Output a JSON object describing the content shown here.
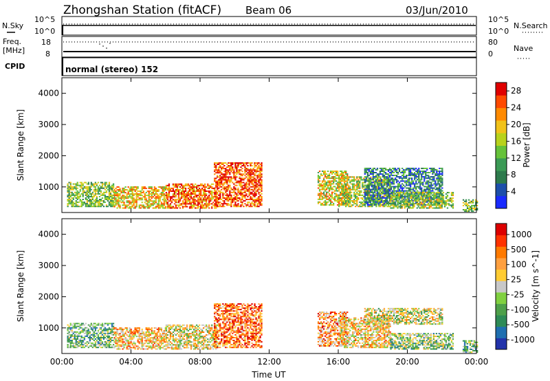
{
  "header": {
    "title": "Zhongshan Station (fitACF)",
    "beam": "Beam 06",
    "date": "03/Jun/2010"
  },
  "sky_panel": {
    "left_label": "N.Sky",
    "right_label": "N.Search",
    "left_ticks": [
      "10^5",
      "10^0"
    ],
    "right_ticks": [
      "10^5",
      "10^0"
    ]
  },
  "freq_panel": {
    "left_label_line1": "Freq.",
    "left_label_line2": "[MHz]",
    "right_label": "Nave",
    "left_ticks": [
      "18",
      "8"
    ],
    "right_ticks": [
      "80",
      "0"
    ]
  },
  "cpid": {
    "label": "CPID",
    "text": "normal (stereo) 152"
  },
  "colors": {
    "power": [
      "#1a2bff",
      "#1d4faa",
      "#2d7a4c",
      "#3b9a55",
      "#66c23a",
      "#b8d21c",
      "#f1c21a",
      "#ff8a00",
      "#ff4a00",
      "#e00000"
    ],
    "velocity": [
      "#2233aa",
      "#1f6fb0",
      "#2e8b57",
      "#4ea04a",
      "#80d040",
      "#c8c8c8",
      "#ffcc33",
      "#ffa040",
      "#ff7a00",
      "#ff3300",
      "#dd0000"
    ]
  },
  "chart_data": [
    {
      "type": "heatmap",
      "name": "power",
      "xlabel": "Time UT",
      "ylabel": "Slant Range [km]",
      "x_ticks": [
        "00:00",
        "04:00",
        "08:00",
        "12:00",
        "16:00",
        "20:00",
        "00:00"
      ],
      "xlim": [
        0,
        24
      ],
      "ylim": [
        180,
        4500
      ],
      "y_ticks": [
        1000,
        2000,
        3000,
        4000
      ],
      "colorbar_label": "Power [dB]",
      "colorbar_ticks": [
        4,
        8,
        12,
        16,
        20,
        24,
        28
      ],
      "colorbar_range": [
        0,
        30
      ],
      "regions": [
        {
          "t0": 0.3,
          "t1": 3.0,
          "r0": 350,
          "r1": 1150,
          "level": 0.45
        },
        {
          "t0": 3.0,
          "t1": 6.0,
          "r0": 300,
          "r1": 1000,
          "level": 0.65
        },
        {
          "t0": 6.0,
          "t1": 9.0,
          "r0": 300,
          "r1": 1100,
          "level": 0.8
        },
        {
          "t0": 8.8,
          "t1": 11.6,
          "r0": 350,
          "r1": 1750,
          "level": 0.85
        },
        {
          "t0": 14.8,
          "t1": 16.5,
          "r0": 400,
          "r1": 1500,
          "level": 0.6
        },
        {
          "t0": 16.0,
          "t1": 19.0,
          "r0": 350,
          "r1": 1300,
          "level": 0.55
        },
        {
          "t0": 17.5,
          "t1": 22.0,
          "r0": 400,
          "r1": 1600,
          "level": 0.25
        },
        {
          "t0": 19.0,
          "t1": 22.6,
          "r0": 300,
          "r1": 800,
          "level": 0.5
        },
        {
          "t0": 23.2,
          "t1": 24.0,
          "r0": 200,
          "r1": 600,
          "level": 0.45
        }
      ]
    },
    {
      "type": "heatmap",
      "name": "velocity",
      "xlabel": "Time UT",
      "ylabel": "Slant Range [km]",
      "x_ticks": [
        "00:00",
        "04:00",
        "08:00",
        "12:00",
        "16:00",
        "20:00",
        "00:00"
      ],
      "xlim": [
        0,
        24
      ],
      "ylim": [
        180,
        4500
      ],
      "y_ticks": [
        1000,
        2000,
        3000,
        4000
      ],
      "colorbar_label": "Velocity [m s^-1]",
      "colorbar_ticks": [
        "1000",
        "500",
        "100",
        "25",
        "-25",
        "-100",
        "-500",
        "-1000"
      ],
      "regions": [
        {
          "t0": 0.3,
          "t1": 3.0,
          "r0": 350,
          "r1": 1150,
          "level": 0.35
        },
        {
          "t0": 3.0,
          "t1": 6.0,
          "r0": 300,
          "r1": 1000,
          "level": 0.62
        },
        {
          "t0": 6.0,
          "t1": 9.0,
          "r0": 300,
          "r1": 1100,
          "level": 0.55
        },
        {
          "t0": 8.8,
          "t1": 11.6,
          "r0": 350,
          "r1": 1750,
          "level": 0.78
        },
        {
          "t0": 14.8,
          "t1": 16.5,
          "r0": 400,
          "r1": 1500,
          "level": 0.7
        },
        {
          "t0": 16.0,
          "t1": 19.0,
          "r0": 350,
          "r1": 1300,
          "level": 0.6
        },
        {
          "t0": 17.5,
          "t1": 22.0,
          "r0": 1100,
          "r1": 1600,
          "level": 0.5
        },
        {
          "t0": 19.0,
          "t1": 22.6,
          "r0": 300,
          "r1": 800,
          "level": 0.4
        },
        {
          "t0": 23.2,
          "t1": 24.0,
          "r0": 200,
          "r1": 600,
          "level": 0.35
        }
      ]
    }
  ]
}
